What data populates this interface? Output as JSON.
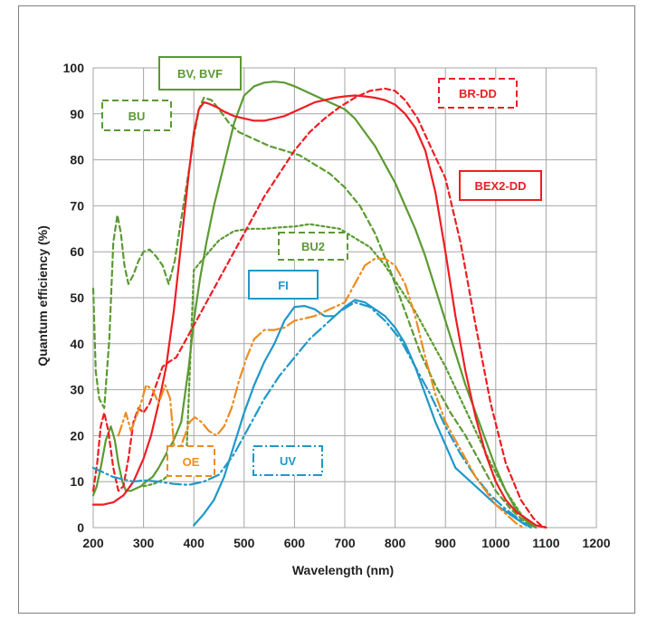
{
  "chart_data": {
    "type": "line",
    "title": "",
    "xlabel": "Wavelength (nm)",
    "ylabel": "Quantum efficiency (%)",
    "xlim": [
      200,
      1200
    ],
    "ylim": [
      0,
      100
    ],
    "xticks": [
      200,
      300,
      400,
      500,
      600,
      700,
      800,
      900,
      1000,
      1100,
      1200
    ],
    "yticks": [
      0,
      10,
      20,
      30,
      40,
      50,
      60,
      70,
      80,
      90,
      100
    ],
    "grid": true,
    "colors": {
      "green": "#5b9a32",
      "red": "#ee1d23",
      "blue": "#1f98c9",
      "orange": "#ed8c1f"
    },
    "series": [
      {
        "name": "BU",
        "color": "#5b9a32",
        "dash": "dashed",
        "label_style": "dashed",
        "x": [
          200,
          205,
          212,
          222,
          232,
          240,
          248,
          255,
          262,
          270,
          280,
          290,
          300,
          312,
          325,
          338,
          350,
          362,
          372,
          382,
          392,
          400,
          410,
          420,
          435,
          450,
          470,
          490,
          510,
          530,
          550,
          580,
          610,
          640,
          670,
          700,
          730,
          760,
          790,
          820,
          850,
          880,
          910,
          940,
          970,
          1000,
          1030,
          1060,
          1080
        ],
        "y": [
          52,
          34,
          28,
          26,
          41,
          62,
          68,
          64,
          57,
          53,
          55,
          58,
          60,
          60.5,
          59,
          57,
          53,
          58,
          65,
          72,
          79,
          85,
          91,
          93.5,
          93,
          91,
          88,
          86,
          85,
          84,
          83,
          82,
          81,
          79,
          77,
          74,
          70,
          64,
          56,
          47,
          38,
          31,
          25,
          20,
          14,
          8,
          4,
          1,
          0
        ]
      },
      {
        "name": "BV, BVF",
        "color": "#5b9a32",
        "dash": "solid",
        "label_style": "solid",
        "x": [
          200,
          207,
          215,
          225,
          235,
          243,
          250,
          258,
          265,
          275,
          285,
          295,
          305,
          318,
          330,
          345,
          360,
          375,
          390,
          400,
          412,
          425,
          440,
          460,
          480,
          500,
          520,
          540,
          560,
          580,
          600,
          620,
          640,
          660,
          680,
          700,
          720,
          740,
          760,
          780,
          800,
          820,
          840,
          860,
          880,
          900,
          920,
          940,
          960,
          980,
          1000,
          1020,
          1040,
          1060,
          1080
        ],
        "y": [
          7,
          9,
          13,
          19,
          22,
          19,
          14,
          10,
          8,
          8,
          8.5,
          9,
          10,
          11,
          13,
          16,
          19,
          23,
          35,
          45,
          54,
          62,
          70,
          79,
          88,
          94,
          96,
          96.8,
          97,
          96.8,
          96,
          95,
          94,
          93,
          92,
          91,
          89,
          86,
          83,
          79,
          75,
          70,
          65,
          59,
          52,
          45,
          38,
          31,
          25,
          19,
          13,
          8,
          4,
          1.5,
          0
        ]
      },
      {
        "name": "BU2",
        "color": "#5b9a32",
        "dash": "dotted",
        "label_style": "dashed",
        "x": [
          300,
          320,
          340,
          355,
          370,
          385,
          400,
          415,
          430,
          450,
          480,
          510,
          540,
          570,
          600,
          630,
          660,
          690,
          720,
          750,
          780,
          810,
          840,
          870,
          900,
          930,
          960,
          990,
          1020,
          1050,
          1075
        ],
        "y": [
          9,
          9.5,
          10.5,
          12,
          13.5,
          15,
          56,
          58,
          60,
          62.5,
          64.5,
          65,
          65,
          65.3,
          65.5,
          66,
          65.5,
          65,
          63,
          61,
          57,
          52,
          47,
          41,
          35,
          28,
          21,
          14,
          8,
          3,
          0
        ]
      },
      {
        "name": "BR-DD",
        "color": "#ee1d23",
        "dash": "dashed",
        "label_style": "dashed",
        "x": [
          200,
          208,
          215,
          222,
          230,
          240,
          250,
          260,
          270,
          280,
          290,
          300,
          312,
          325,
          338,
          350,
          365,
          380,
          395,
          410,
          430,
          455,
          480,
          510,
          540,
          570,
          600,
          630,
          660,
          690,
          720,
          750,
          780,
          800,
          820,
          845,
          870,
          900,
          930,
          960,
          990,
          1020,
          1050,
          1075,
          1090,
          1100
        ],
        "y": [
          8,
          14,
          22,
          25,
          21,
          13,
          8,
          9,
          15,
          23,
          26,
          25,
          27,
          31,
          35,
          36,
          37,
          40,
          43,
          46,
          50,
          55,
          60,
          66,
          72,
          77,
          82,
          86,
          89,
          91.5,
          93.5,
          95,
          95.5,
          95,
          93,
          89,
          83,
          76,
          62,
          44,
          27,
          14,
          6,
          2,
          0.5,
          0
        ]
      },
      {
        "name": "BEX2-DD",
        "color": "#ee1d23",
        "dash": "solid",
        "label_style": "solid",
        "x": [
          200,
          220,
          240,
          260,
          280,
          300,
          315,
          330,
          345,
          360,
          375,
          390,
          400,
          410,
          420,
          430,
          445,
          460,
          480,
          500,
          520,
          540,
          560,
          580,
          600,
          620,
          640,
          660,
          680,
          700,
          720,
          740,
          760,
          780,
          800,
          820,
          840,
          860,
          880,
          900,
          920,
          940,
          960,
          980,
          1000,
          1020,
          1040,
          1060,
          1080,
          1100
        ],
        "y": [
          5,
          5,
          5.5,
          7,
          10,
          15,
          20,
          27,
          35,
          47,
          62,
          77,
          86,
          91,
          92.5,
          92.2,
          91.5,
          90.5,
          89.5,
          89,
          88.5,
          88.5,
          89,
          89.5,
          90.5,
          91.5,
          92.5,
          93,
          93.5,
          93.8,
          94,
          93.8,
          93.5,
          93,
          92,
          90,
          87,
          82,
          73,
          60,
          46,
          34,
          24,
          16,
          10,
          6,
          3.5,
          2,
          0.5,
          0
        ]
      },
      {
        "name": "FI",
        "color": "#1f98c9",
        "dash": "solid",
        "label_style": "solid",
        "x": [
          400,
          420,
          440,
          460,
          480,
          500,
          520,
          540,
          560,
          580,
          600,
          620,
          640,
          660,
          680,
          700,
          720,
          740,
          760,
          780,
          800,
          820,
          840,
          860,
          880,
          900,
          920,
          940,
          960,
          980,
          1000,
          1020,
          1040,
          1060
        ],
        "y": [
          0.5,
          3,
          6,
          11,
          18,
          25,
          31,
          36,
          40,
          45,
          48,
          48.2,
          47.5,
          46,
          46,
          48,
          49.5,
          49,
          47.5,
          46,
          43.5,
          40,
          35,
          29,
          23,
          18,
          13,
          11,
          9,
          7,
          5,
          3.5,
          2,
          0.5
        ]
      },
      {
        "name": "UV",
        "color": "#1f98c9",
        "dash": "dashdot",
        "label_style": "dashdot",
        "x": [
          200,
          220,
          240,
          260,
          280,
          300,
          330,
          360,
          390,
          420,
          450,
          480,
          510,
          540,
          570,
          600,
          630,
          660,
          690,
          720,
          750,
          780,
          810,
          840,
          870,
          900,
          930,
          960,
          990,
          1020,
          1050,
          1070
        ],
        "y": [
          13,
          12,
          11,
          10.5,
          10,
          10.3,
          10,
          9.5,
          9.3,
          10,
          11.5,
          16,
          22,
          28,
          33,
          37,
          41,
          44,
          47,
          49,
          48,
          45,
          41,
          35,
          29,
          22,
          16,
          11,
          7,
          4,
          1.5,
          0
        ]
      },
      {
        "name": "OE",
        "color": "#ed8c1f",
        "dash": "dashdot",
        "label_style": "dashed",
        "x": [
          250,
          265,
          275,
          285,
          295,
          305,
          318,
          330,
          343,
          353,
          362,
          372,
          382,
          392,
          402,
          415,
          430,
          445,
          460,
          475,
          490,
          505,
          520,
          540,
          560,
          580,
          600,
          620,
          640,
          660,
          680,
          700,
          720,
          740,
          760,
          780,
          800,
          820,
          840,
          860,
          880,
          900,
          920,
          940,
          960,
          980,
          1000,
          1020,
          1040,
          1055
        ],
        "y": [
          20,
          25,
          21,
          24,
          27,
          31,
          30,
          27,
          31,
          28,
          16,
          17,
          20,
          23,
          24,
          23,
          21,
          20,
          22,
          26,
          32,
          37,
          41,
          43,
          43,
          43.5,
          45,
          45.5,
          46,
          47,
          48,
          49,
          53,
          57,
          58.5,
          58.5,
          57,
          53,
          46,
          37,
          29,
          23,
          19,
          15,
          11,
          8,
          5,
          3,
          1,
          0
        ]
      }
    ],
    "labels": {
      "bu": "BU",
      "bv": "BV, BVF",
      "bu2": "BU2",
      "brdd": "BR-DD",
      "bex2dd": "BEX2-DD",
      "fi": "FI",
      "uv": "UV",
      "oe": "OE"
    }
  }
}
